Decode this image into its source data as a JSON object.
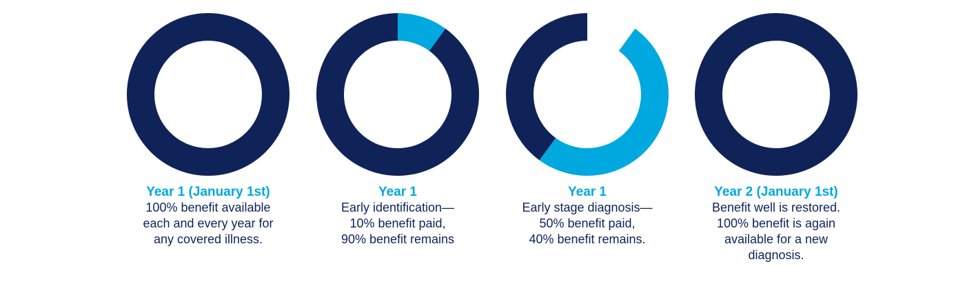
{
  "colors": {
    "remaining": "#0f2358",
    "paid": "#00a8e0",
    "heading": "#00a8e0",
    "body_text": "#0f2358"
  },
  "chart_data": [
    {
      "type": "pie",
      "variant": "donut",
      "heading": "Year 1 (January 1st)",
      "lines": [
        "100% benefit available",
        "each and every year for",
        "any covered illness."
      ],
      "slices": [
        {
          "label": "benefit available",
          "value": 100,
          "color": "#0f2358"
        }
      ]
    },
    {
      "type": "pie",
      "variant": "donut",
      "heading": "Year 1",
      "lines": [
        "Early identification—",
        "10% benefit paid,",
        "90% benefit remains"
      ],
      "slices": [
        {
          "label": "benefit paid",
          "value": 10,
          "color": "#00a8e0"
        },
        {
          "label": "benefit remains",
          "value": 90,
          "color": "#0f2358"
        }
      ]
    },
    {
      "type": "pie",
      "variant": "donut",
      "heading": "Year 1",
      "lines": [
        "Early stage diagnosis—",
        "50% benefit paid,",
        "40% benefit remains."
      ],
      "slices": [
        {
          "label": "benefit paid (earlier)",
          "value": 10,
          "color": "#ffffff"
        },
        {
          "label": "benefit paid",
          "value": 50,
          "color": "#00a8e0"
        },
        {
          "label": "benefit remains",
          "value": 40,
          "color": "#0f2358"
        }
      ]
    },
    {
      "type": "pie",
      "variant": "donut",
      "heading": "Year 2 (January 1st)",
      "lines": [
        "Benefit well is restored.",
        "100% benefit is again",
        "available for a new",
        "diagnosis."
      ],
      "slices": [
        {
          "label": "benefit available",
          "value": 100,
          "color": "#0f2358"
        }
      ]
    }
  ]
}
